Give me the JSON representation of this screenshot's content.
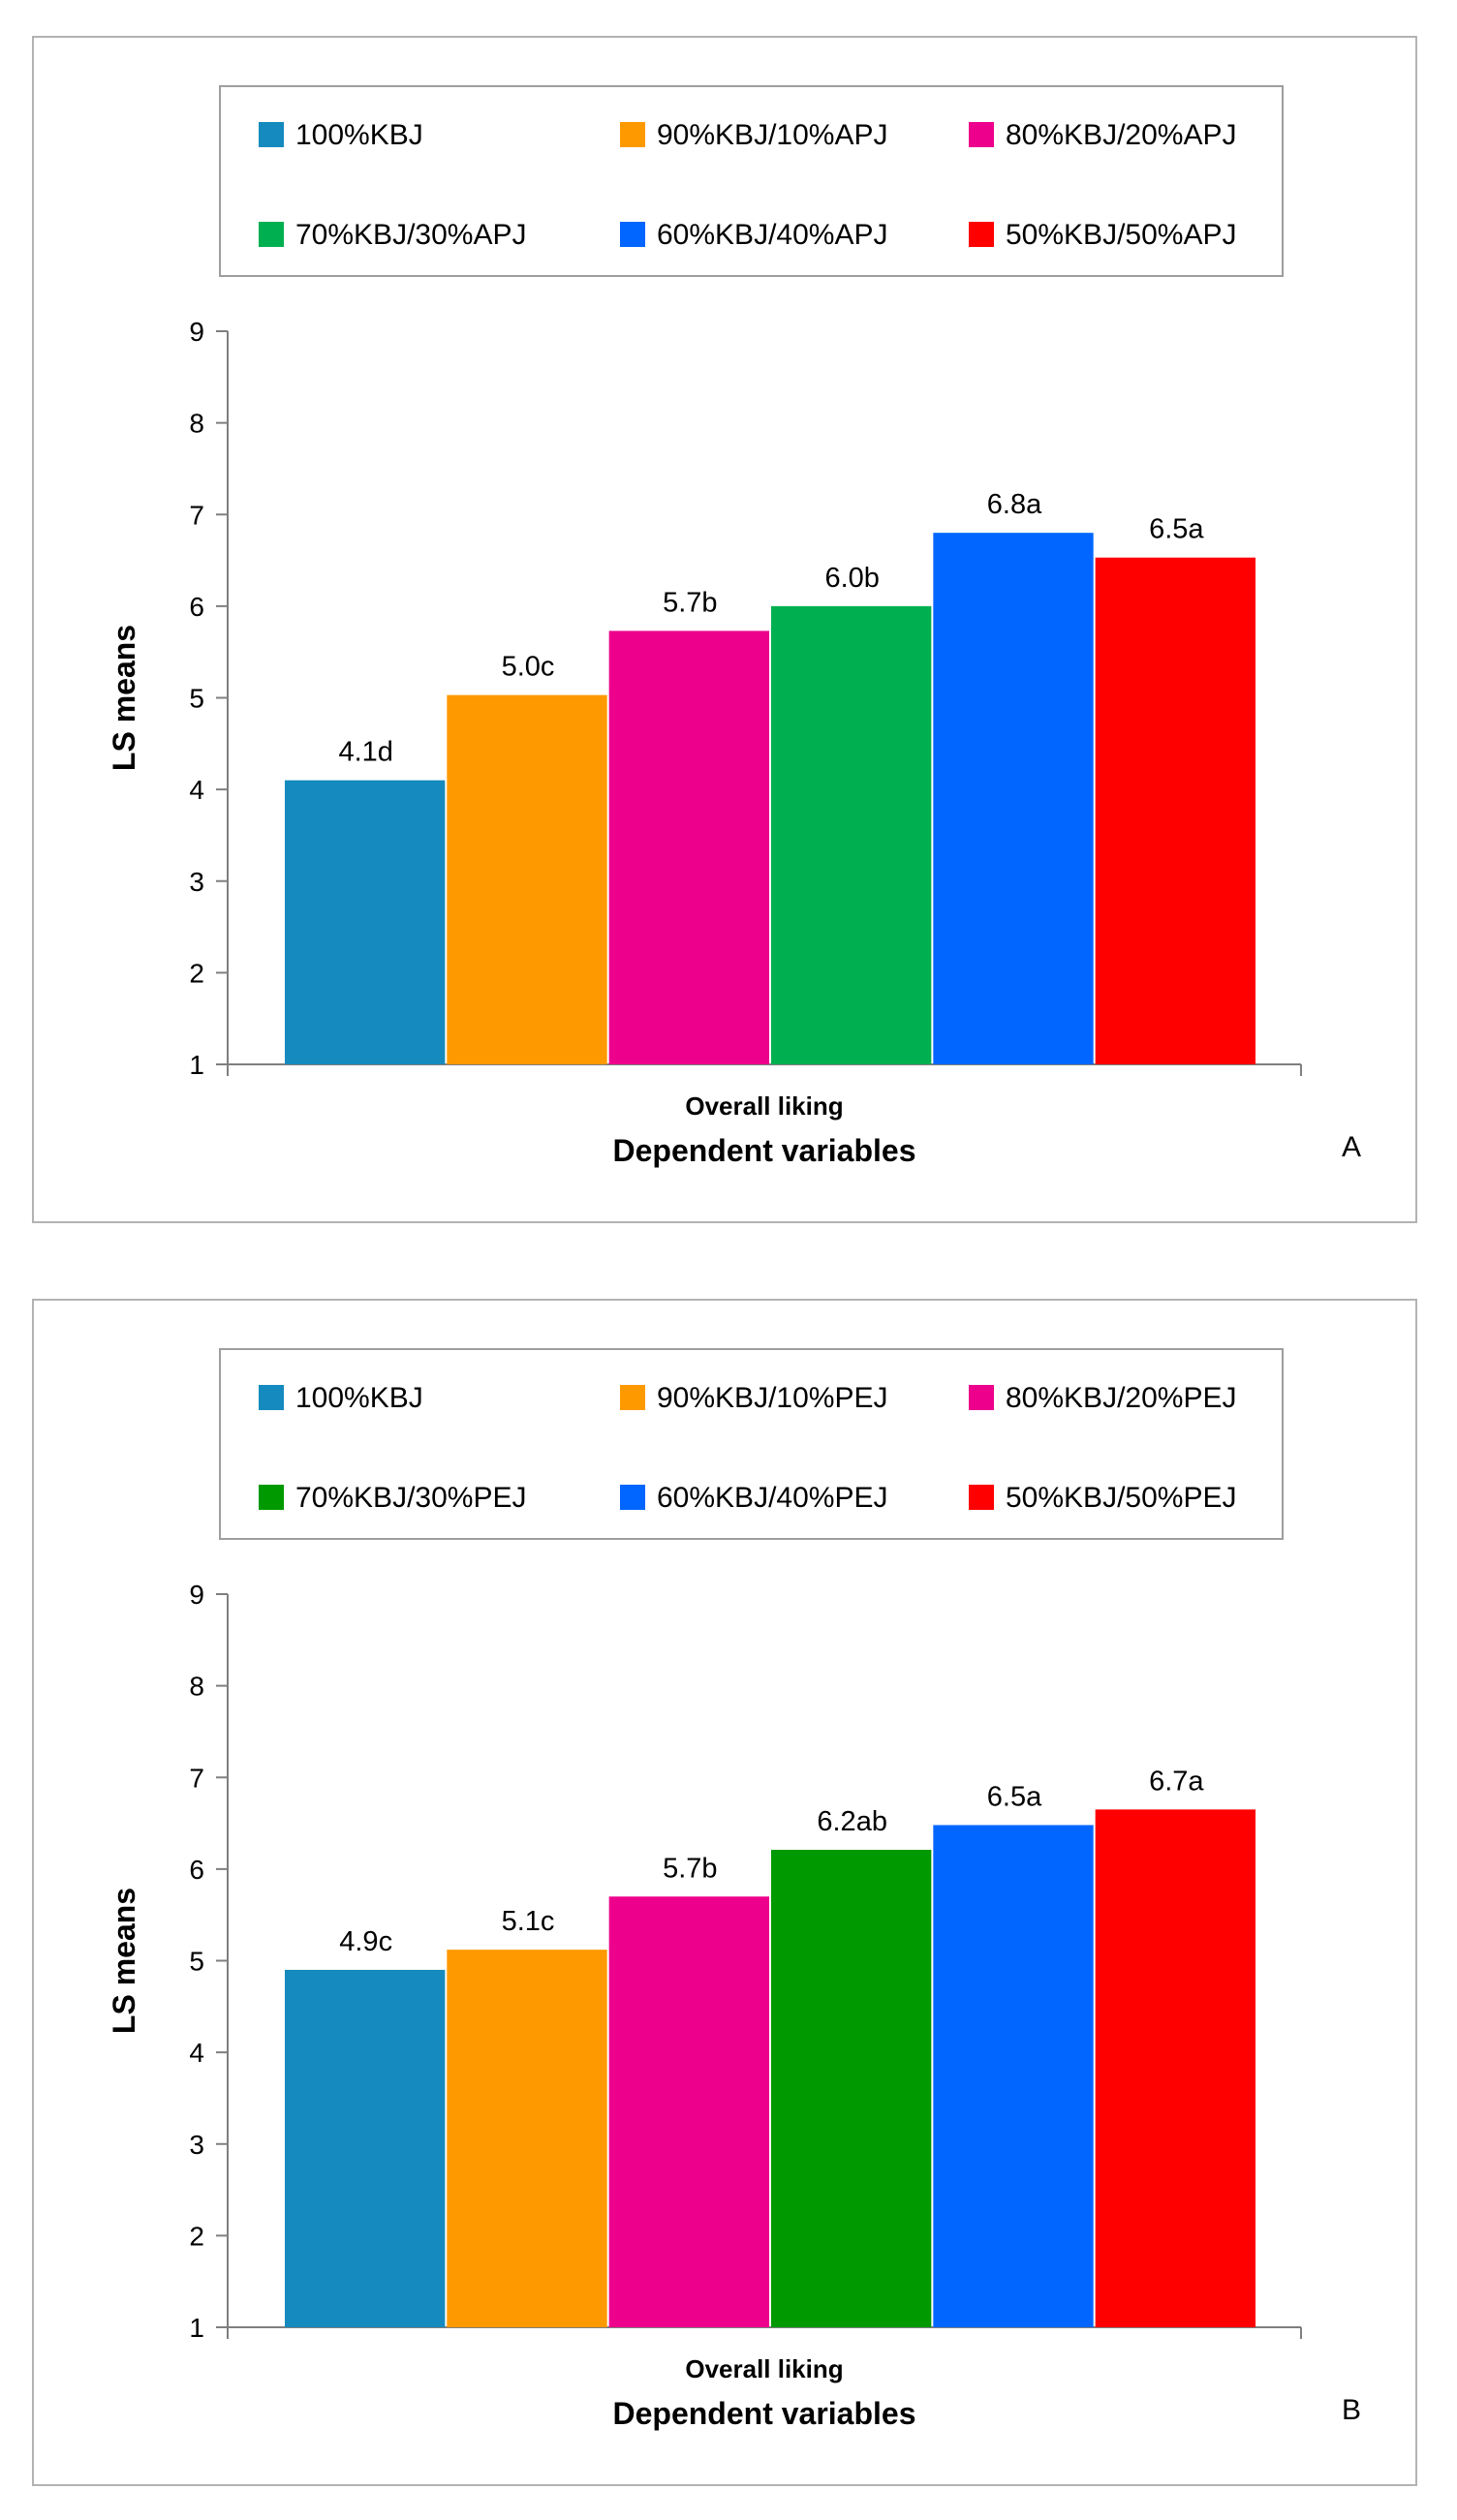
{
  "chart_data": [
    {
      "type": "bar",
      "panel_label": "A",
      "categories": [
        "Overall liking"
      ],
      "xlabel": "Dependent variables",
      "ylabel": "LS means",
      "ylim": [
        1,
        9
      ],
      "yticks": [
        "1",
        "2",
        "3",
        "4",
        "5",
        "6",
        "7",
        "8",
        "9"
      ],
      "grid": false,
      "legend_position": "top",
      "series": [
        {
          "name": "100%KBJ",
          "values": [
            4.1
          ],
          "label": "4.1d",
          "color": "#158ABF"
        },
        {
          "name": "90%KBJ/10%APJ",
          "values": [
            5.03
          ],
          "label": "5.0c",
          "color": "#FF9900"
        },
        {
          "name": "80%KBJ/20%APJ",
          "values": [
            5.73
          ],
          "label": "5.7b",
          "color": "#EC008C"
        },
        {
          "name": "70%KBJ/30%APJ",
          "values": [
            6.0
          ],
          "label": "6.0b",
          "color": "#00B050"
        },
        {
          "name": "60%KBJ/40%APJ",
          "values": [
            6.8
          ],
          "label": "6.8a",
          "color": "#0066FF"
        },
        {
          "name": "50%KBJ/50%APJ",
          "values": [
            6.53
          ],
          "label": "6.5a",
          "color": "#FF0000"
        }
      ]
    },
    {
      "type": "bar",
      "panel_label": "B",
      "categories": [
        "Overall liking"
      ],
      "xlabel": "Dependent variables",
      "ylabel": "LS means",
      "ylim": [
        1,
        9
      ],
      "yticks": [
        "1",
        "2",
        "3",
        "4",
        "5",
        "6",
        "7",
        "8",
        "9"
      ],
      "grid": false,
      "legend_position": "top",
      "series": [
        {
          "name": "100%KBJ",
          "values": [
            4.9
          ],
          "label": "4.9c",
          "color": "#158ABF"
        },
        {
          "name": "90%KBJ/10%PEJ",
          "values": [
            5.12
          ],
          "label": "5.1c",
          "color": "#FF9900"
        },
        {
          "name": "80%KBJ/20%PEJ",
          "values": [
            5.7
          ],
          "label": "5.7b",
          "color": "#EC008C"
        },
        {
          "name": "70%KBJ/30%PEJ",
          "values": [
            6.21
          ],
          "label": "6.2ab",
          "color": "#009900"
        },
        {
          "name": "60%KBJ/40%PEJ",
          "values": [
            6.48
          ],
          "label": "6.5a",
          "color": "#0066FF"
        },
        {
          "name": "50%KBJ/50%PEJ",
          "values": [
            6.65
          ],
          "label": "6.7a",
          "color": "#FF0000"
        }
      ]
    }
  ]
}
